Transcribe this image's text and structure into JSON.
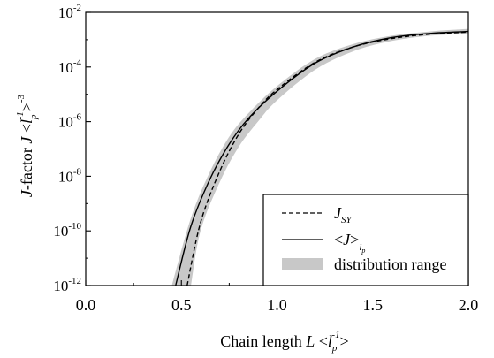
{
  "chart_data": {
    "type": "line",
    "x_scale": "linear",
    "y_scale": "log",
    "xlim": [
      0.0,
      2.0
    ],
    "ylim": [
      1e-12,
      0.01
    ],
    "x_ticks": [
      0.0,
      0.5,
      1.0,
      1.5,
      2.0
    ],
    "x_tick_labels": [
      "0.0",
      "0.5",
      "1.0",
      "1.5",
      "2.0"
    ],
    "y_ticks": [
      1e-12,
      1e-10,
      1e-08,
      1e-06,
      0.0001,
      0.01
    ],
    "y_tick_labels": [
      {
        "base": "10",
        "exp": "-12"
      },
      {
        "base": "10",
        "exp": "-10"
      },
      {
        "base": "10",
        "exp": "-8"
      },
      {
        "base": "10",
        "exp": "-6"
      },
      {
        "base": "10",
        "exp": "-4"
      },
      {
        "base": "10",
        "exp": "-2"
      }
    ],
    "xlabel": {
      "text": "Chain length  ",
      "var": "L",
      "open": " <",
      "l": "l",
      "sub": "p",
      "sup": "-1",
      "close": ">"
    },
    "ylabel": {
      "pre": "J",
      "text": "-factor  ",
      "var": "J",
      "open": " <",
      "l": "l",
      "sub": "p",
      "sup": "-1",
      "sup2": "-3",
      "close": ">"
    },
    "grid": false,
    "legend_position": "bottom-right",
    "series": [
      {
        "name": "J_SY",
        "legend": {
          "main": "J",
          "sub": "SY"
        },
        "style": "dashed",
        "color": "#000000",
        "x": [
          0.53,
          0.6,
          0.7,
          0.8,
          0.9,
          1.0,
          1.2,
          1.4,
          1.6,
          1.8,
          2.0
        ],
        "y": [
          1e-12,
          2e-10,
          1.5e-08,
          3.5e-07,
          3e-06,
          1.5e-05,
          0.00015,
          0.00055,
          0.0011,
          0.0016,
          0.0019
        ]
      },
      {
        "name": "<J>_lp",
        "legend": {
          "open": "<",
          "main": "J",
          "close": ">",
          "sub": "l",
          "subsub": "p"
        },
        "style": "solid",
        "color": "#000000",
        "x": [
          0.47,
          0.55,
          0.65,
          0.75,
          0.85,
          1.0,
          1.2,
          1.4,
          1.6,
          1.8,
          2.0
        ],
        "y": [
          1e-12,
          1.5e-10,
          8e-09,
          1.5e-07,
          1.3e-06,
          1.3e-05,
          0.00014,
          0.00055,
          0.0012,
          0.0017,
          0.002
        ]
      },
      {
        "name": "distribution range",
        "legend": {
          "main": "distribution range"
        },
        "style": "band",
        "color": "#c8c8c8",
        "x": [
          0.45,
          0.55,
          0.65,
          0.75,
          0.85,
          1.0,
          1.2,
          1.4,
          1.6,
          1.8,
          2.0
        ],
        "y_upper": [
          1e-12,
          3e-10,
          1.5e-08,
          2.8e-07,
          2e-06,
          2e-05,
          0.0002,
          0.0007,
          0.0014,
          0.002,
          0.0025
        ],
        "x_lower": [
          0.55,
          0.6,
          0.7,
          0.8,
          0.9,
          1.0,
          1.2,
          1.4,
          1.6,
          1.8,
          2.0
        ],
        "y_lower": [
          1e-12,
          1e-10,
          6e-09,
          1.2e-07,
          1e-06,
          6e-06,
          8e-05,
          0.00038,
          0.0009,
          0.0014,
          0.0017
        ]
      }
    ]
  }
}
